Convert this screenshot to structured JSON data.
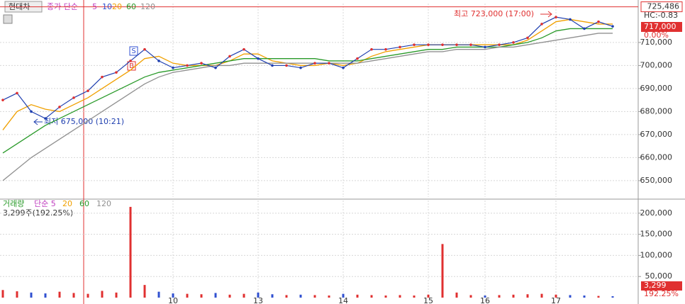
{
  "chart_data": [
    {
      "type": "line",
      "stock": "현대차",
      "legend_prefix": "종가 단순",
      "legend_extra": [
        {
          "name": "5",
          "color": "#c040c0"
        },
        {
          "name": "10",
          "color": "#3050d0"
        }
      ],
      "categories": [
        null,
        null,
        null,
        null,
        null,
        null,
        null,
        null,
        null,
        null,
        null,
        null,
        "10",
        null,
        null,
        null,
        null,
        null,
        "13",
        null,
        null,
        null,
        null,
        null,
        "14",
        null,
        null,
        null,
        null,
        null,
        "15",
        null,
        null,
        null,
        "16",
        null,
        null,
        null,
        null,
        "17",
        null,
        null,
        null,
        null
      ],
      "price": {
        "color": "#2040b0",
        "values": [
          685000,
          688000,
          680000,
          677000,
          682000,
          686000,
          689000,
          695000,
          697000,
          702000,
          707000,
          702000,
          699000,
          700000,
          701000,
          699000,
          704000,
          707000,
          703000,
          700000,
          700000,
          699000,
          701000,
          701000,
          699000,
          703000,
          707000,
          707000,
          708000,
          709000,
          709000,
          709000,
          709000,
          709000,
          708000,
          709000,
          710000,
          712000,
          718000,
          721000,
          720000,
          716000,
          719000,
          717000
        ]
      },
      "series": [
        {
          "name": "20",
          "color": "#f0a000",
          "values": [
            672000,
            680000,
            683000,
            681000,
            680000,
            683000,
            686000,
            690000,
            694000,
            698000,
            703000,
            704000,
            701000,
            700000,
            700000,
            700000,
            702000,
            705000,
            705000,
            702000,
            701000,
            700000,
            700000,
            701000,
            700000,
            701000,
            704000,
            706000,
            707000,
            708000,
            709000,
            709000,
            709000,
            709000,
            709000,
            709000,
            709000,
            711000,
            715000,
            719000,
            720000,
            719000,
            718000,
            718000
          ]
        },
        {
          "name": "60",
          "color": "#2a9a2a",
          "values": [
            662000,
            666000,
            670000,
            674000,
            677000,
            680000,
            683000,
            686000,
            689000,
            692000,
            695000,
            697000,
            698000,
            699000,
            700000,
            701000,
            702000,
            703000,
            703000,
            703000,
            703000,
            703000,
            703000,
            702000,
            702000,
            702000,
            703000,
            704000,
            705000,
            706000,
            707000,
            707000,
            708000,
            708000,
            708000,
            708000,
            709000,
            710000,
            712000,
            715000,
            716000,
            716000,
            716000,
            716000
          ]
        },
        {
          "name": "120",
          "color": "#909090",
          "values": [
            650000,
            655000,
            660000,
            664000,
            668000,
            672000,
            676000,
            680000,
            684000,
            688000,
            692000,
            695000,
            697000,
            698000,
            699000,
            700000,
            700000,
            701000,
            701000,
            701000,
            701000,
            701000,
            701000,
            701000,
            701000,
            701000,
            702000,
            703000,
            704000,
            705000,
            706000,
            706000,
            707000,
            707000,
            707000,
            708000,
            708000,
            709000,
            710000,
            711000,
            712000,
            713000,
            714000,
            714000
          ]
        }
      ],
      "ylim": [
        642900,
        726900
      ],
      "yticks": [
        {
          "value": 650000,
          "label": "650,000"
        },
        {
          "value": 660000,
          "label": "660,000"
        },
        {
          "value": 670000,
          "label": "670,000"
        },
        {
          "value": 680000,
          "label": "680,000"
        },
        {
          "value": 690000,
          "label": "690,000"
        },
        {
          "value": 700000,
          "label": "700,000"
        },
        {
          "value": 710000,
          "label": "710,000"
        }
      ],
      "grid": true,
      "reference_line": {
        "value": 725486,
        "label": "725,486",
        "color": "#e03030"
      },
      "high_annotation": "최고 723,000 (17:00)",
      "low_annotation": "최저 675,000 (10:21)",
      "right_tags": [
        "HC:-0.83",
        "717,000",
        "0.00%"
      ],
      "signals": [
        "S",
        "B"
      ]
    },
    {
      "type": "bar",
      "legend_prefix": "거래량",
      "legend_items": [
        {
          "name": "단순 5",
          "color": "#c040c0"
        },
        {
          "name": "20",
          "color": "#f0a000"
        },
        {
          "name": "60",
          "color": "#2a9a2a"
        },
        {
          "name": "120",
          "color": "#909090"
        }
      ],
      "info": "3,299주(192.25%)",
      "up_color": "#e03030",
      "down_color": "#3050d0",
      "values": [
        18000,
        15000,
        12000,
        10000,
        14000,
        11000,
        9000,
        16000,
        12000,
        215000,
        30000,
        14000,
        10000,
        9000,
        8000,
        11000,
        7000,
        9000,
        12000,
        8000,
        6000,
        7000,
        6000,
        5000,
        9000,
        7000,
        6000,
        5000,
        6000,
        5000,
        7000,
        127000,
        12000,
        6000,
        5000,
        6000,
        7000,
        8000,
        9000,
        7000,
        6000,
        5000,
        4000,
        3299
      ],
      "ylim": [
        0,
        230000
      ],
      "yticks": [
        {
          "value": 50000,
          "label": "50,000"
        },
        {
          "value": 100000,
          "label": "100,000"
        },
        {
          "value": 150000,
          "label": "150,000"
        },
        {
          "value": 200000,
          "label": "200,000"
        }
      ],
      "grid": true,
      "right_tags": [
        "3,299",
        "192.25%"
      ]
    }
  ]
}
